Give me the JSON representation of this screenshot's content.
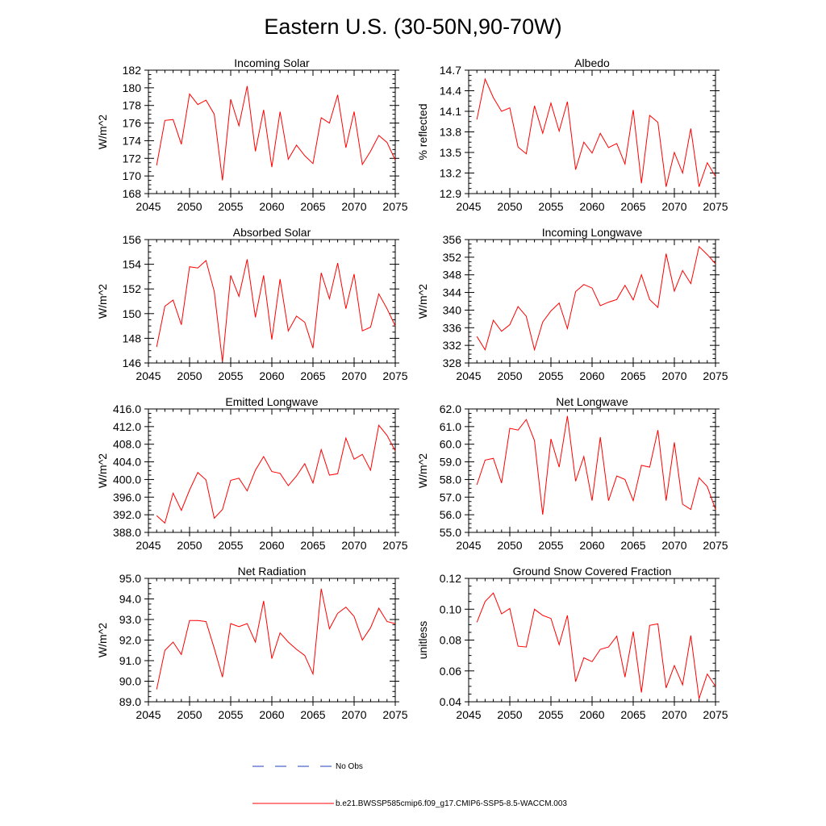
{
  "title": "Eastern U.S. (30-50N,90-70W)",
  "colors": {
    "model": "#ff0000",
    "obs": "#1f3fbf",
    "axis": "#000000"
  },
  "legend": {
    "obs_label": "No Obs",
    "model_label": "b.e21.BWSSP585cmip6.f09_g17.CMIP6-SSP5-8.5-WACCM.003"
  },
  "chart_data": [
    {
      "type": "line",
      "title": "Incoming Solar",
      "xlabel": "",
      "ylabel": "W/m^2",
      "xlim": [
        2045,
        2075
      ],
      "ylim": [
        168,
        182
      ],
      "xticks": [
        "2045",
        "2050",
        "2055",
        "2060",
        "2065",
        "2070",
        "2075"
      ],
      "yticks": [
        "168",
        "170",
        "172",
        "174",
        "176",
        "178",
        "180",
        "182"
      ],
      "x": [
        2046,
        2047,
        2048,
        2049,
        2050,
        2051,
        2052,
        2053,
        2054,
        2055,
        2056,
        2057,
        2058,
        2059,
        2060,
        2061,
        2062,
        2063,
        2064,
        2065,
        2066,
        2067,
        2068,
        2069,
        2070,
        2071,
        2072,
        2073,
        2074,
        2075
      ],
      "values": [
        171.2,
        176.3,
        176.4,
        173.6,
        179.3,
        178.1,
        178.6,
        177.0,
        169.5,
        178.7,
        175.7,
        180.2,
        172.8,
        177.5,
        171.0,
        177.3,
        171.9,
        173.5,
        172.3,
        171.4,
        176.6,
        176.0,
        179.2,
        173.2,
        177.3,
        171.3,
        172.8,
        174.6,
        173.8,
        171.8
      ]
    },
    {
      "type": "line",
      "title": "Albedo",
      "xlabel": "",
      "ylabel": "% reflected",
      "xlim": [
        2045,
        2075
      ],
      "ylim": [
        12.9,
        14.7
      ],
      "xticks": [
        "2045",
        "2050",
        "2055",
        "2060",
        "2065",
        "2070",
        "2075"
      ],
      "yticks": [
        "12.9",
        "13.2",
        "13.5",
        "13.8",
        "14.1",
        "14.4",
        "14.7"
      ],
      "x": [
        2046,
        2047,
        2048,
        2049,
        2050,
        2051,
        2052,
        2053,
        2054,
        2055,
        2056,
        2057,
        2058,
        2059,
        2060,
        2061,
        2062,
        2063,
        2064,
        2065,
        2066,
        2067,
        2068,
        2069,
        2070,
        2071,
        2072,
        2073,
        2074,
        2075
      ],
      "values": [
        13.98,
        14.57,
        14.3,
        14.1,
        14.15,
        13.58,
        13.48,
        14.18,
        13.78,
        14.22,
        13.81,
        14.24,
        13.25,
        13.65,
        13.49,
        13.78,
        13.57,
        13.63,
        13.33,
        14.12,
        13.05,
        14.04,
        13.94,
        13.0,
        13.5,
        13.2,
        13.85,
        13.0,
        13.35,
        13.15
      ]
    },
    {
      "type": "line",
      "title": "Absorbed Solar",
      "xlabel": "",
      "ylabel": "W/m^2",
      "xlim": [
        2045,
        2075
      ],
      "ylim": [
        146,
        156
      ],
      "xticks": [
        "2045",
        "2050",
        "2055",
        "2060",
        "2065",
        "2070",
        "2075"
      ],
      "yticks": [
        "146",
        "148",
        "150",
        "152",
        "154",
        "156"
      ],
      "x": [
        2046,
        2047,
        2048,
        2049,
        2050,
        2051,
        2052,
        2053,
        2054,
        2055,
        2056,
        2057,
        2058,
        2059,
        2060,
        2061,
        2062,
        2063,
        2064,
        2065,
        2066,
        2067,
        2068,
        2069,
        2070,
        2071,
        2072,
        2073,
        2074,
        2075
      ],
      "values": [
        147.3,
        150.6,
        151.1,
        149.1,
        153.8,
        153.7,
        154.3,
        151.8,
        146.1,
        153.1,
        151.4,
        154.4,
        149.7,
        153.1,
        147.9,
        152.8,
        148.6,
        149.8,
        149.3,
        147.2,
        153.3,
        151.2,
        154.1,
        150.4,
        153.2,
        148.6,
        148.9,
        151.6,
        150.4,
        149.0
      ]
    },
    {
      "type": "line",
      "title": "Incoming Longwave",
      "xlabel": "",
      "ylabel": "W/m^2",
      "xlim": [
        2045,
        2075
      ],
      "ylim": [
        328,
        356
      ],
      "xticks": [
        "2045",
        "2050",
        "2055",
        "2060",
        "2065",
        "2070",
        "2075"
      ],
      "yticks": [
        "328",
        "332",
        "336",
        "340",
        "344",
        "348",
        "352",
        "356"
      ],
      "x": [
        2046,
        2047,
        2048,
        2049,
        2050,
        2051,
        2052,
        2053,
        2054,
        2055,
        2056,
        2057,
        2058,
        2059,
        2060,
        2061,
        2062,
        2063,
        2064,
        2065,
        2066,
        2067,
        2068,
        2069,
        2070,
        2071,
        2072,
        2073,
        2074,
        2075
      ],
      "values": [
        334.0,
        331.0,
        337.7,
        335.2,
        336.7,
        340.8,
        338.6,
        331.0,
        337.3,
        339.8,
        341.6,
        335.8,
        344.2,
        345.8,
        345.0,
        341.0,
        341.8,
        342.4,
        345.6,
        342.3,
        348.0,
        342.4,
        340.6,
        352.8,
        344.3,
        349.0,
        346.0,
        354.4,
        352.6,
        350.5
      ]
    },
    {
      "type": "line",
      "title": "Emitted Longwave",
      "xlabel": "",
      "ylabel": "W/m^2",
      "xlim": [
        2045,
        2075
      ],
      "ylim": [
        388,
        416
      ],
      "xticks": [
        "2045",
        "2050",
        "2055",
        "2060",
        "2065",
        "2070",
        "2075"
      ],
      "yticks": [
        "388.0",
        "392.0",
        "396.0",
        "400.0",
        "404.0",
        "408.0",
        "412.0",
        "416.0"
      ],
      "x": [
        2046,
        2047,
        2048,
        2049,
        2050,
        2051,
        2052,
        2053,
        2054,
        2055,
        2056,
        2057,
        2058,
        2059,
        2060,
        2061,
        2062,
        2063,
        2064,
        2065,
        2066,
        2067,
        2068,
        2069,
        2070,
        2071,
        2072,
        2073,
        2074,
        2075
      ],
      "values": [
        391.8,
        390.1,
        396.9,
        393.0,
        397.6,
        401.6,
        399.9,
        391.2,
        393.2,
        399.8,
        400.3,
        397.4,
        402.1,
        405.2,
        401.8,
        401.4,
        398.6,
        400.8,
        403.6,
        399.2,
        406.8,
        401.0,
        401.3,
        409.4,
        404.6,
        405.7,
        402.1,
        412.3,
        410.0,
        406.5
      ]
    },
    {
      "type": "line",
      "title": "Net Longwave",
      "xlabel": "",
      "ylabel": "W/m^2",
      "xlim": [
        2045,
        2075
      ],
      "ylim": [
        55,
        62
      ],
      "xticks": [
        "2045",
        "2050",
        "2055",
        "2060",
        "2065",
        "2070",
        "2075"
      ],
      "yticks": [
        "55.0",
        "56.0",
        "57.0",
        "58.0",
        "59.0",
        "60.0",
        "61.0",
        "62.0"
      ],
      "x": [
        2046,
        2047,
        2048,
        2049,
        2050,
        2051,
        2052,
        2053,
        2054,
        2055,
        2056,
        2057,
        2058,
        2059,
        2060,
        2061,
        2062,
        2063,
        2064,
        2065,
        2066,
        2067,
        2068,
        2069,
        2070,
        2071,
        2072,
        2073,
        2074,
        2075
      ],
      "values": [
        57.7,
        59.1,
        59.2,
        57.8,
        60.9,
        60.8,
        61.4,
        60.2,
        56.0,
        60.3,
        58.7,
        61.6,
        57.9,
        59.3,
        56.8,
        60.4,
        56.8,
        58.2,
        58.0,
        56.8,
        58.8,
        58.7,
        60.8,
        56.8,
        60.1,
        56.6,
        56.3,
        58.1,
        57.6,
        56.3
      ]
    },
    {
      "type": "line",
      "title": "Net Radiation",
      "xlabel": "",
      "ylabel": "W/m^2",
      "xlim": [
        2045,
        2075
      ],
      "ylim": [
        89,
        95
      ],
      "xticks": [
        "2045",
        "2050",
        "2055",
        "2060",
        "2065",
        "2070",
        "2075"
      ],
      "yticks": [
        "89.0",
        "90.0",
        "91.0",
        "92.0",
        "93.0",
        "94.0",
        "95.0"
      ],
      "x": [
        2046,
        2047,
        2048,
        2049,
        2050,
        2051,
        2052,
        2053,
        2054,
        2055,
        2056,
        2057,
        2058,
        2059,
        2060,
        2061,
        2062,
        2063,
        2064,
        2065,
        2066,
        2067,
        2068,
        2069,
        2070,
        2071,
        2072,
        2073,
        2074,
        2075
      ],
      "values": [
        89.6,
        91.5,
        91.9,
        91.3,
        92.95,
        92.95,
        92.9,
        91.6,
        90.2,
        92.8,
        92.65,
        92.8,
        91.9,
        93.9,
        91.1,
        92.35,
        91.9,
        91.55,
        91.25,
        90.35,
        94.5,
        92.55,
        93.3,
        93.6,
        93.15,
        92.0,
        92.6,
        93.55,
        92.9,
        92.8
      ]
    },
    {
      "type": "line",
      "title": "Ground Snow Covered Fraction",
      "xlabel": "",
      "ylabel": "unitless",
      "xlim": [
        2045,
        2075
      ],
      "ylim": [
        0.04,
        0.12
      ],
      "xticks": [
        "2045",
        "2050",
        "2055",
        "2060",
        "2065",
        "2070",
        "2075"
      ],
      "yticks": [
        "0.04",
        "0.06",
        "0.08",
        "0.10",
        "0.12"
      ],
      "x": [
        2046,
        2047,
        2048,
        2049,
        2050,
        2051,
        2052,
        2053,
        2054,
        2055,
        2056,
        2057,
        2058,
        2059,
        2060,
        2061,
        2062,
        2063,
        2064,
        2065,
        2066,
        2067,
        2068,
        2069,
        2070,
        2071,
        2072,
        2073,
        2074,
        2075
      ],
      "values": [
        0.0915,
        0.105,
        0.1105,
        0.097,
        0.1005,
        0.076,
        0.0755,
        0.1,
        0.096,
        0.094,
        0.077,
        0.096,
        0.053,
        0.0685,
        0.066,
        0.074,
        0.0755,
        0.0825,
        0.056,
        0.0855,
        0.046,
        0.0895,
        0.0905,
        0.049,
        0.0635,
        0.051,
        0.083,
        0.042,
        0.058,
        0.05
      ]
    }
  ]
}
